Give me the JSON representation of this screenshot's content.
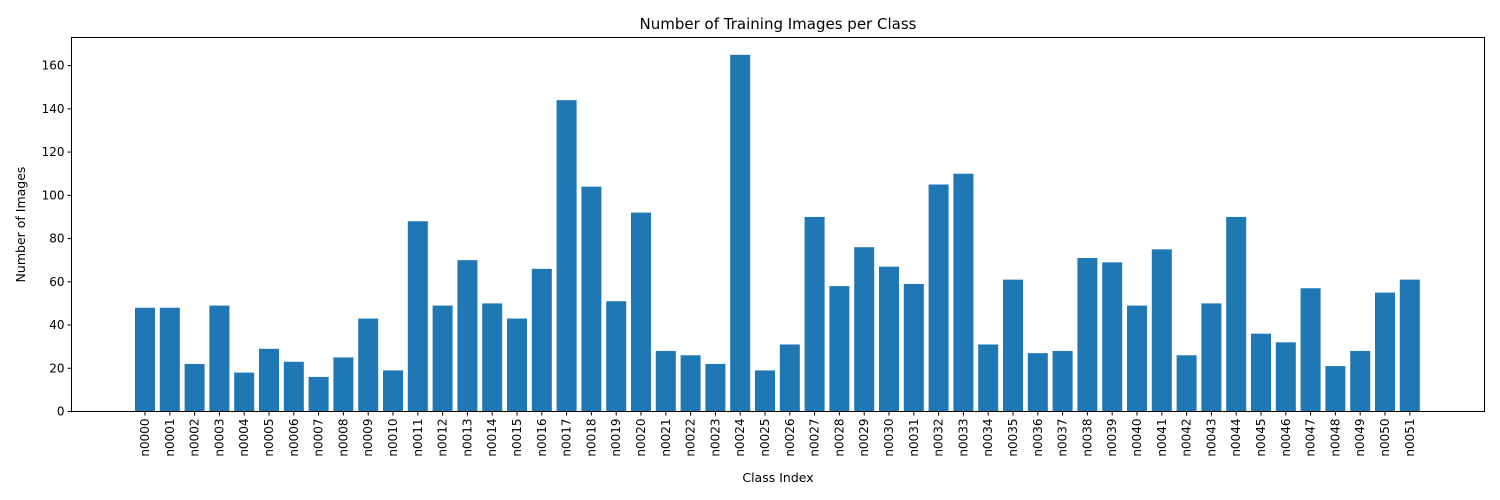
{
  "chart_data": {
    "type": "bar",
    "title": "Number of Training Images per Class",
    "xlabel": "Class Index",
    "ylabel": "Number of Images",
    "ylim": [
      0,
      173
    ],
    "yticks": [
      0,
      20,
      40,
      60,
      80,
      100,
      120,
      140,
      160
    ],
    "bar_color": "#1f77b4",
    "grid": false,
    "categories": [
      "n0000",
      "n0001",
      "n0002",
      "n0003",
      "n0004",
      "n0005",
      "n0006",
      "n0007",
      "n0008",
      "n0009",
      "n0010",
      "n0011",
      "n0012",
      "n0013",
      "n0014",
      "n0015",
      "n0016",
      "n0017",
      "n0018",
      "n0019",
      "n0020",
      "n0021",
      "n0022",
      "n0023",
      "n0024",
      "n0025",
      "n0026",
      "n0027",
      "n0028",
      "n0029",
      "n0030",
      "n0031",
      "n0032",
      "n0033",
      "n0034",
      "n0035",
      "n0036",
      "n0037",
      "n0038",
      "n0039",
      "n0040",
      "n0041",
      "n0042",
      "n0043",
      "n0044",
      "n0045",
      "n0046",
      "n0047",
      "n0048",
      "n0049",
      "n0050",
      "n0051"
    ],
    "values": [
      48,
      48,
      22,
      49,
      18,
      29,
      23,
      16,
      25,
      43,
      19,
      88,
      49,
      70,
      50,
      43,
      66,
      144,
      104,
      51,
      92,
      28,
      26,
      22,
      165,
      19,
      31,
      90,
      58,
      76,
      67,
      59,
      105,
      110,
      31,
      61,
      27,
      28,
      71,
      69,
      49,
      75,
      26,
      50,
      90,
      36,
      32,
      57,
      21,
      28,
      55,
      61
    ]
  }
}
